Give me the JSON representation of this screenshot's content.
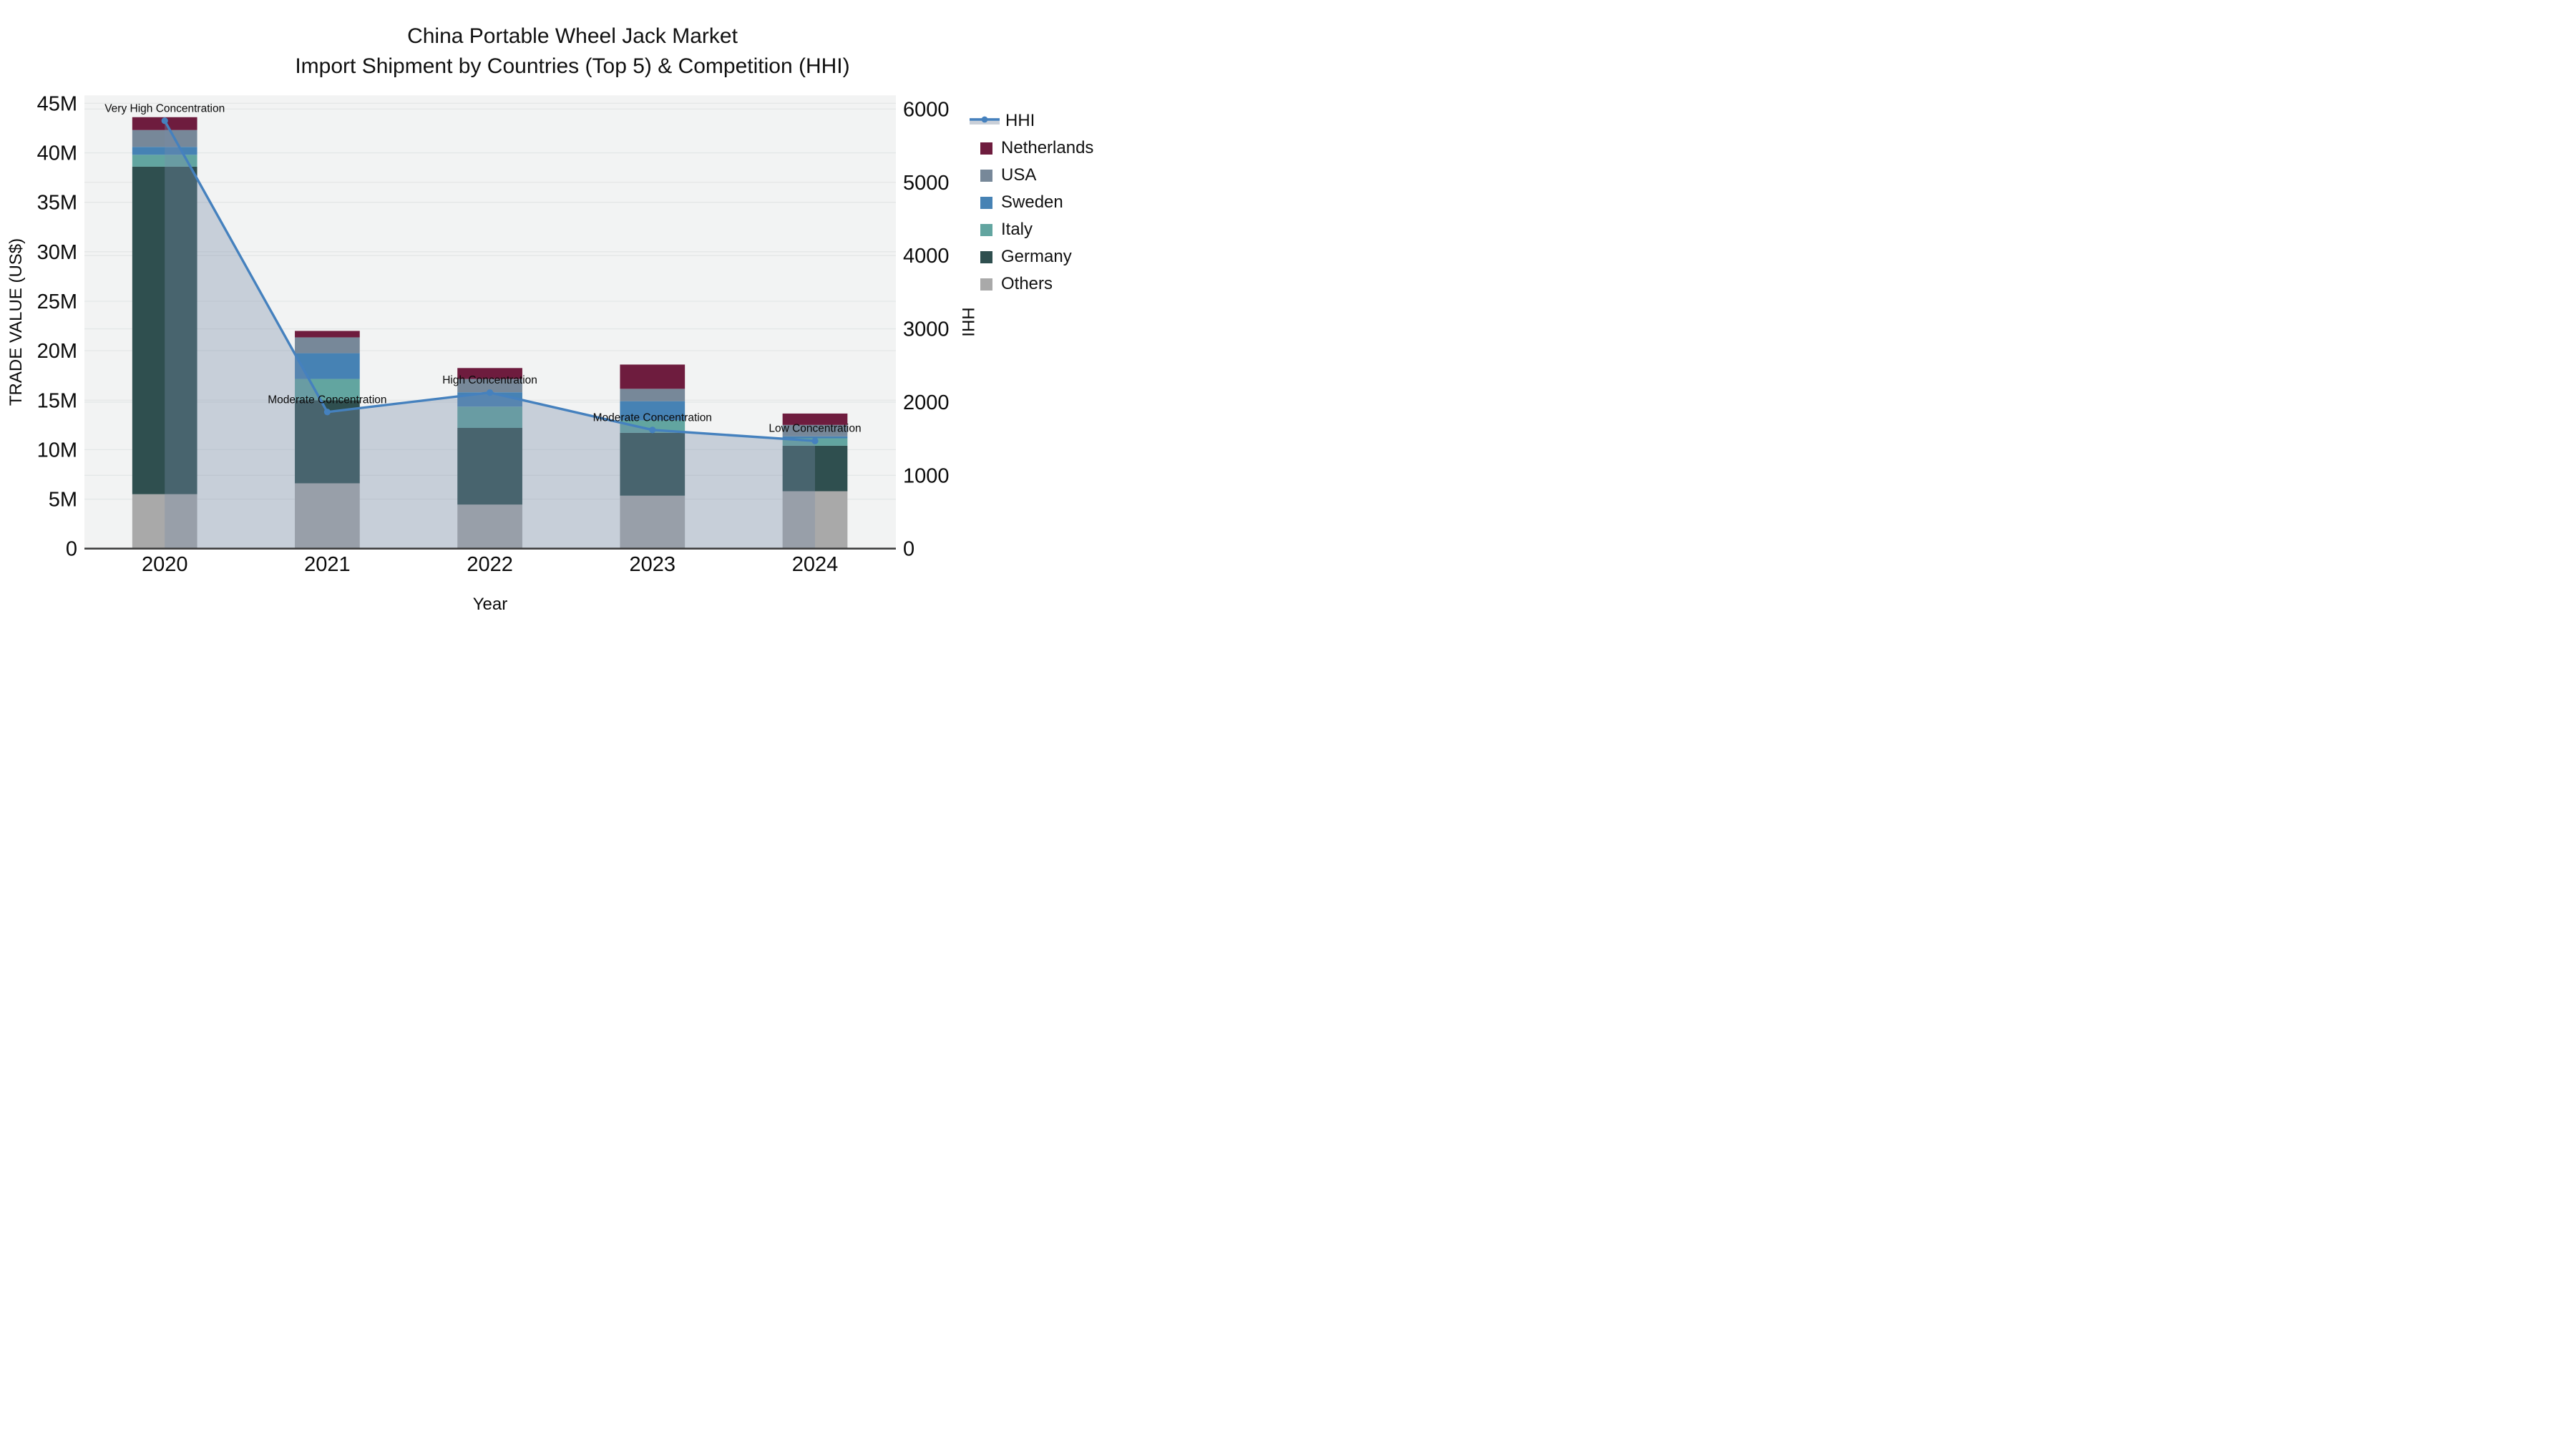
{
  "title": {
    "line1": "China Portable Wheel Jack Market",
    "line2": "Import Shipment by Countries (Top 5) & Competition (HHI)"
  },
  "chart_data": {
    "type": "bar-stacked+line",
    "categories": [
      "2020",
      "2021",
      "2022",
      "2023",
      "2024"
    ],
    "unit": "million US$",
    "series": [
      {
        "name": "Others",
        "color": "#A9A9A9",
        "values": [
          5.5,
          6.6,
          4.45,
          5.35,
          5.8
        ]
      },
      {
        "name": "Germany",
        "color": "#2F4F4F",
        "values": [
          33.1,
          8.4,
          7.75,
          6.35,
          4.6
        ]
      },
      {
        "name": "Italy",
        "color": "#62A5A0",
        "values": [
          1.2,
          2.15,
          2.15,
          1.25,
          0.75
        ]
      },
      {
        "name": "Sweden",
        "color": "#4682B4",
        "values": [
          0.8,
          2.6,
          1.45,
          1.95,
          0.2
        ]
      },
      {
        "name": "USA",
        "color": "#778899",
        "values": [
          1.7,
          1.6,
          1.35,
          1.25,
          1.15
        ]
      },
      {
        "name": "Netherlands",
        "color": "#6E1C3E",
        "values": [
          1.3,
          0.65,
          1.1,
          2.45,
          1.15
        ]
      }
    ],
    "line": {
      "name": "HHI",
      "color": "#4581BE",
      "area_fill": "rgba(120,140,170,0.35)",
      "values": [
        5840,
        1865,
        2130,
        1620,
        1470
      ]
    },
    "annotations": [
      "Very High Concentration",
      "Moderate Concentration",
      "High Concentration",
      "Moderate Concentration",
      "Low Concentration"
    ],
    "y_left": {
      "title": "TRADE VALUE (US$)",
      "tick_labels": [
        "0",
        "5M",
        "10M",
        "15M",
        "20M",
        "25M",
        "30M",
        "35M",
        "40M",
        "45M"
      ],
      "tick_values": [
        0,
        5,
        10,
        15,
        20,
        25,
        30,
        35,
        40,
        45
      ],
      "max": 45
    },
    "y_right": {
      "title": "HHI",
      "tick_labels": [
        "0",
        "1000",
        "2000",
        "3000",
        "4000",
        "5000",
        "6000"
      ],
      "tick_values": [
        0,
        1000,
        2000,
        3000,
        4000,
        5000,
        6000
      ],
      "max": 6000
    },
    "x_axis": {
      "title": "Year"
    },
    "legend": [
      "HHI",
      "Netherlands",
      "USA",
      "Sweden",
      "Italy",
      "Germany",
      "Others"
    ],
    "style": {
      "plot_bg": "#F2F3F3",
      "grid_color": "#E4E7E7",
      "axis_line_color": "#3F3F3F",
      "legend_band_color": "#C9CFD8"
    }
  }
}
